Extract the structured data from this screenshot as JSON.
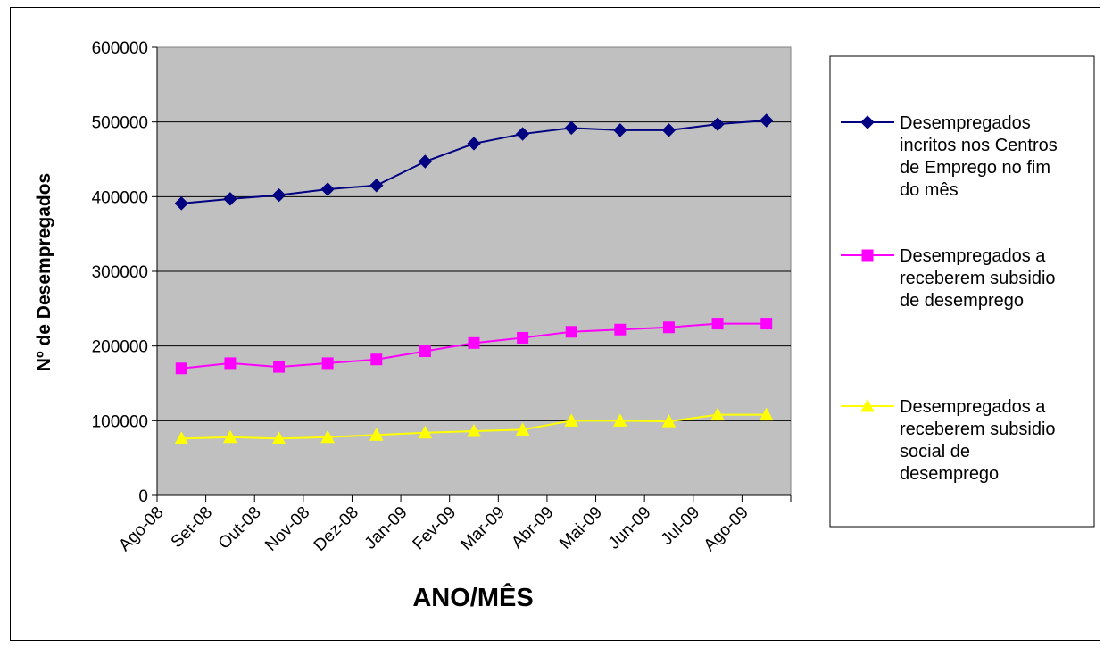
{
  "chart_data": {
    "type": "line",
    "title": "",
    "xlabel": "ANO/MÊS",
    "ylabel": "Nº de Desempregados",
    "categories": [
      "Ago-08",
      "Set-08",
      "Out-08",
      "Nov-08",
      "Dez-08",
      "Jan-09",
      "Fev-09",
      "Mar-09",
      "Abr-09",
      "Mai-09",
      "Jun-09",
      "Jul-09",
      "Ago-09"
    ],
    "ylim": [
      0,
      600000
    ],
    "yticks": [
      "0",
      "100000",
      "200000",
      "300000",
      "400000",
      "500000",
      "600000"
    ],
    "grid": true,
    "legend_position": "right",
    "plot_background": "#c0c0c0",
    "series": [
      {
        "name": "Desempregados incritos nos Centros de Emprego no fim do mês",
        "legend_lines": [
          "Desempregados",
          "incritos nos Centros",
          "de Emprego no fim",
          "do mês"
        ],
        "color": "#000080",
        "marker": "diamond",
        "values": [
          391000,
          397000,
          402000,
          410000,
          415000,
          447000,
          471000,
          484000,
          492000,
          489000,
          489000,
          497000,
          502000
        ]
      },
      {
        "name": "Desempregados a receberem subsidio de desemprego",
        "legend_lines": [
          "Desempregados a",
          "receberem subsidio",
          "de desemprego"
        ],
        "color": "#ff00ff",
        "marker": "square",
        "values": [
          170000,
          177000,
          172000,
          177000,
          182000,
          193000,
          204000,
          211000,
          219000,
          222000,
          225000,
          230000,
          230000
        ]
      },
      {
        "name": "Desempregados a receberem subsidio social de desemprego",
        "legend_lines": [
          "Desempregados a",
          "receberem subsidio",
          "social de",
          "desemprego"
        ],
        "color": "#ffff00",
        "marker": "triangle",
        "values": [
          76000,
          78000,
          76000,
          78000,
          81000,
          84000,
          86000,
          88000,
          100000,
          100000,
          99000,
          108000,
          108000
        ]
      }
    ]
  }
}
